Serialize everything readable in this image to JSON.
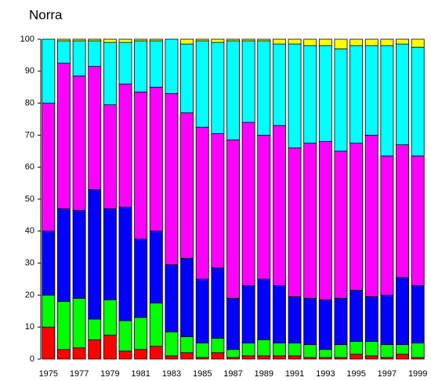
{
  "chart_data": {
    "type": "stacked_bar",
    "title": "Norra",
    "categories": [
      "1975",
      null,
      "1977",
      null,
      "1979",
      null,
      "1981",
      null,
      "1983",
      null,
      "1985",
      null,
      "1987",
      null,
      "1989",
      null,
      "1991",
      null,
      "1993",
      null,
      "1995",
      null,
      "1997",
      null,
      "1999"
    ],
    "series": [
      {
        "color": "#ff0000",
        "values": [
          10,
          3,
          3.5,
          6,
          7.5,
          2.5,
          3,
          4,
          1,
          2,
          0.5,
          2,
          0.5,
          1,
          1,
          1,
          1,
          0.5,
          0.5,
          0.5,
          1.5,
          1,
          0.5,
          1.5,
          0.5
        ]
      },
      {
        "color": "#00ff00",
        "values": [
          10,
          15,
          15.5,
          6.5,
          11,
          9.5,
          10,
          13.5,
          7.5,
          5,
          4.5,
          4.5,
          2.5,
          4,
          5,
          4,
          4,
          4,
          2.5,
          4,
          4,
          4.5,
          4,
          3,
          4.5
        ]
      },
      {
        "color": "#0000ff",
        "values": [
          20,
          29,
          27.5,
          40.5,
          28.5,
          35.5,
          24.5,
          22.5,
          21,
          24.5,
          20,
          22,
          16,
          18,
          19,
          18,
          14.5,
          14.5,
          15.5,
          14.5,
          16,
          14,
          15.5,
          21,
          18
        ]
      },
      {
        "color": "#ff00ff",
        "values": [
          40,
          45.5,
          42,
          38.5,
          32.5,
          38.5,
          46,
          45,
          53.5,
          45.5,
          47.5,
          42,
          49.5,
          51,
          45,
          50,
          46.5,
          48.5,
          49.5,
          46,
          46,
          50.5,
          43.5,
          41.5,
          40.5
        ]
      },
      {
        "color": "#00ffff",
        "values": [
          20,
          7,
          11,
          8,
          19.5,
          13,
          16,
          14.5,
          17,
          21.5,
          27,
          28.5,
          31,
          25.5,
          29.5,
          25.5,
          32.5,
          30.5,
          30,
          32,
          30.5,
          28,
          34.5,
          31.5,
          34
        ]
      },
      {
        "color": "#ffff00",
        "values": [
          0,
          0.5,
          0.5,
          0.5,
          1,
          1,
          0.5,
          0.5,
          0,
          1.5,
          0.5,
          1,
          0.5,
          0.5,
          0.5,
          1.5,
          1.5,
          2,
          2,
          3,
          2,
          2,
          2,
          1.5,
          2.5
        ]
      }
    ],
    "ylim": [
      0,
      100
    ],
    "yticks": [
      0,
      10,
      20,
      30,
      40,
      50,
      60,
      70,
      80,
      90,
      100
    ]
  }
}
